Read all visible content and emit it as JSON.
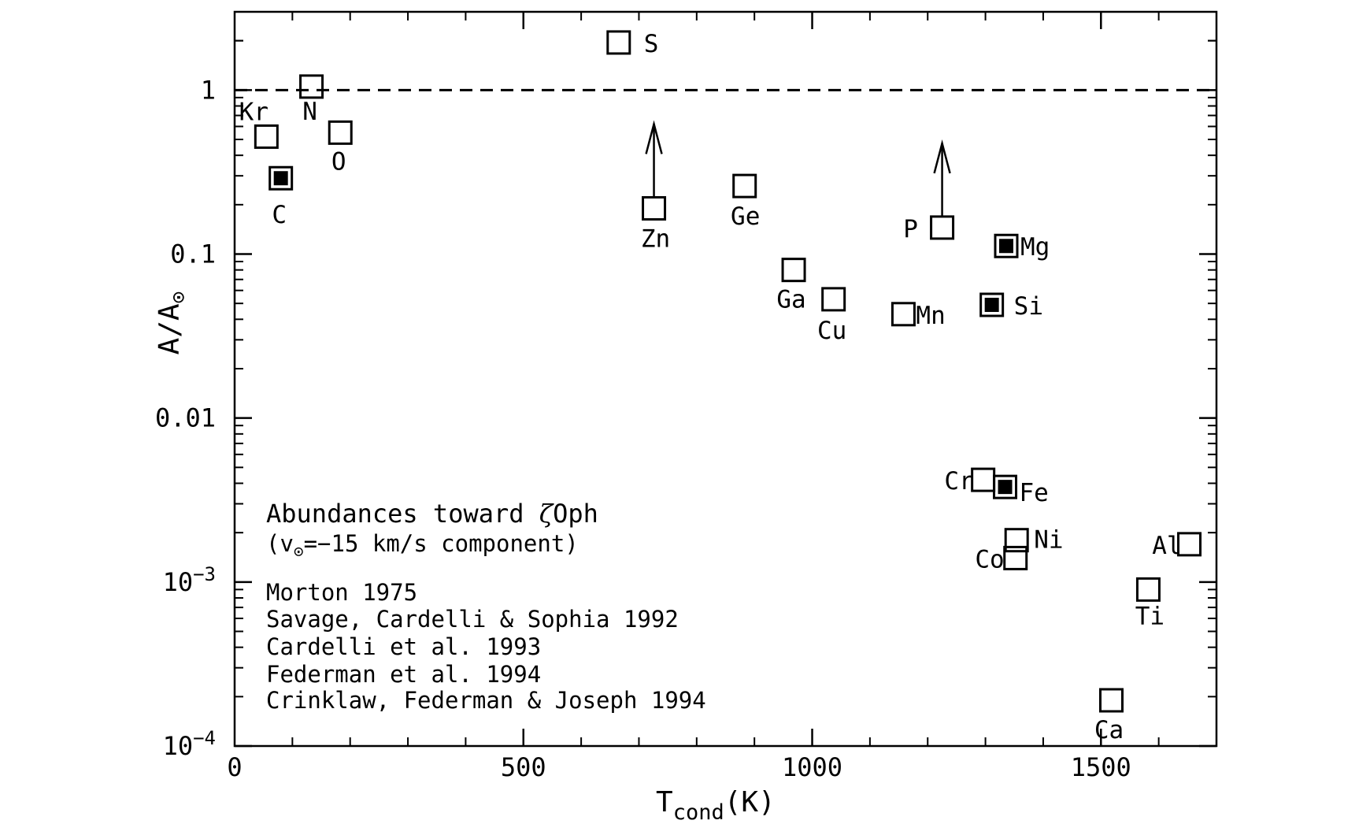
{
  "chart_data": {
    "type": "scatter",
    "title": "",
    "xlabel": {
      "main": "T",
      "sub": "cond",
      "unit": "(K)"
    },
    "ylabel": {
      "main": "A/A",
      "sub": "⊙"
    },
    "xlim": [
      0,
      1700
    ],
    "ylim": [
      0.0001,
      3
    ],
    "yscale": "log",
    "x_ticks": [
      {
        "value": 0,
        "label": "0"
      },
      {
        "value": 500,
        "label": "500"
      },
      {
        "value": 1000,
        "label": "1000"
      },
      {
        "value": 1500,
        "label": "1500"
      }
    ],
    "y_ticks": [
      {
        "value": 1,
        "label": "1"
      },
      {
        "value": 0.1,
        "label": "0.1"
      },
      {
        "value": 0.01,
        "label": "0.01"
      },
      {
        "value": 0.001,
        "label": "10",
        "exp": "−3"
      },
      {
        "value": 0.0001,
        "label": "10",
        "exp": "−4"
      }
    ],
    "reference_line": {
      "y": 1,
      "style": "dashed"
    },
    "points": [
      {
        "element": "Kr",
        "x": 55,
        "y": 0.52,
        "filled": false,
        "lower_limit": false
      },
      {
        "element": "C",
        "x": 80,
        "y": 0.29,
        "filled": true,
        "lower_limit": false
      },
      {
        "element": "N",
        "x": 133,
        "y": 1.05,
        "filled": false,
        "lower_limit": false
      },
      {
        "element": "O",
        "x": 183,
        "y": 0.55,
        "filled": false,
        "lower_limit": false
      },
      {
        "element": "S",
        "x": 665,
        "y": 1.95,
        "filled": false,
        "lower_limit": false
      },
      {
        "element": "Zn",
        "x": 726,
        "y": 0.19,
        "filled": false,
        "lower_limit": true
      },
      {
        "element": "Ge",
        "x": 883,
        "y": 0.26,
        "filled": false,
        "lower_limit": false
      },
      {
        "element": "Ga",
        "x": 968,
        "y": 0.08,
        "filled": false,
        "lower_limit": false
      },
      {
        "element": "Cu",
        "x": 1037,
        "y": 0.053,
        "filled": false,
        "lower_limit": false
      },
      {
        "element": "Mn",
        "x": 1158,
        "y": 0.043,
        "filled": false,
        "lower_limit": false
      },
      {
        "element": "P",
        "x": 1225,
        "y": 0.145,
        "filled": false,
        "lower_limit": true
      },
      {
        "element": "Mg",
        "x": 1336,
        "y": 0.112,
        "filled": true,
        "lower_limit": false
      },
      {
        "element": "Si",
        "x": 1311,
        "y": 0.049,
        "filled": true,
        "lower_limit": false
      },
      {
        "element": "Cr",
        "x": 1296,
        "y": 0.0042,
        "filled": false,
        "lower_limit": false
      },
      {
        "element": "Fe",
        "x": 1334,
        "y": 0.0038,
        "filled": true,
        "lower_limit": false
      },
      {
        "element": "Ni",
        "x": 1354,
        "y": 0.0018,
        "filled": false,
        "lower_limit": false
      },
      {
        "element": "Co",
        "x": 1352,
        "y": 0.0014,
        "filled": false,
        "lower_limit": false
      },
      {
        "element": "Al",
        "x": 1653,
        "y": 0.0017,
        "filled": false,
        "lower_limit": false
      },
      {
        "element": "Ti",
        "x": 1582,
        "y": 0.0009,
        "filled": false,
        "lower_limit": false
      },
      {
        "element": "Ca",
        "x": 1518,
        "y": 0.00019,
        "filled": false,
        "lower_limit": false
      }
    ],
    "annotations": {
      "title_line": {
        "text": "Abundances toward ",
        "zeta": "ζ",
        "rest": "Oph"
      },
      "component_line": {
        "open": "(v",
        "sub": "⊙",
        "rest": "=−15 km/s component)"
      },
      "references": [
        "Morton 1975",
        "Savage, Cardelli & Sophia 1992",
        "Cardelli et al. 1993",
        "Federman et al. 1994",
        "Crinklaw, Federman & Joseph 1994"
      ]
    }
  }
}
